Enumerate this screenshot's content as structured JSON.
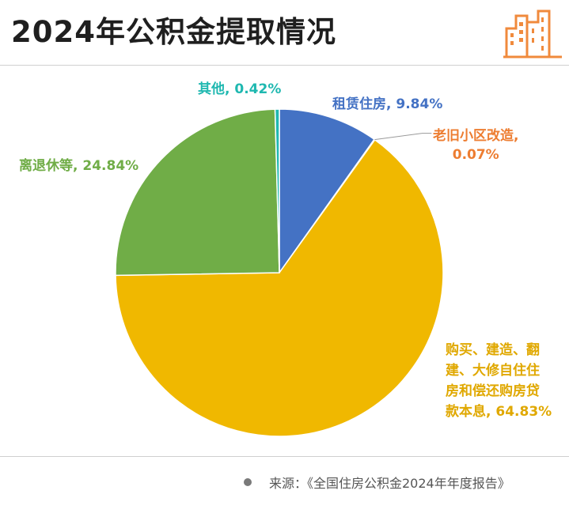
{
  "title": "2024年公积金提取情况",
  "colors": {
    "rent": "#4472c4",
    "renovation": "#ed7d31",
    "purchase": "#f0b800",
    "retire": "#70ad47",
    "other": "#1fb8b0"
  },
  "chart_data": {
    "type": "pie",
    "title": "2024年公积金提取情况",
    "slices": [
      {
        "label": "租赁住房",
        "value": 9.84,
        "display": "9.84%",
        "color": "#4472c4"
      },
      {
        "label": "老旧小区改造",
        "value": 0.07,
        "display": "0.07%",
        "color": "#ed7d31"
      },
      {
        "label": "购买、建造、翻建、大修自住住房和偿还购房贷款本息",
        "value": 64.83,
        "display": "64.83%",
        "color": "#f0b800"
      },
      {
        "label": "离退休等",
        "value": 24.84,
        "display": "24.84%",
        "color": "#70ad47"
      },
      {
        "label": "其他",
        "value": 0.42,
        "display": "0.42%",
        "color": "#1fb8b0"
      }
    ],
    "legend": "none"
  },
  "labels": {
    "other": "其他, 0.42%",
    "rent": "租赁住房, 9.84%",
    "renovation_line1": "老旧小区改造,",
    "renovation_line2": "0.07%",
    "retire": "离退休等, 24.84%",
    "purchase_line1": "购买、建造、翻",
    "purchase_line2": "建、大修自住住",
    "purchase_line3": "房和偿还购房贷",
    "purchase_line4": "款本息, 64.83%"
  },
  "source": "来源：《全国住房公积金2024年年度报告》"
}
